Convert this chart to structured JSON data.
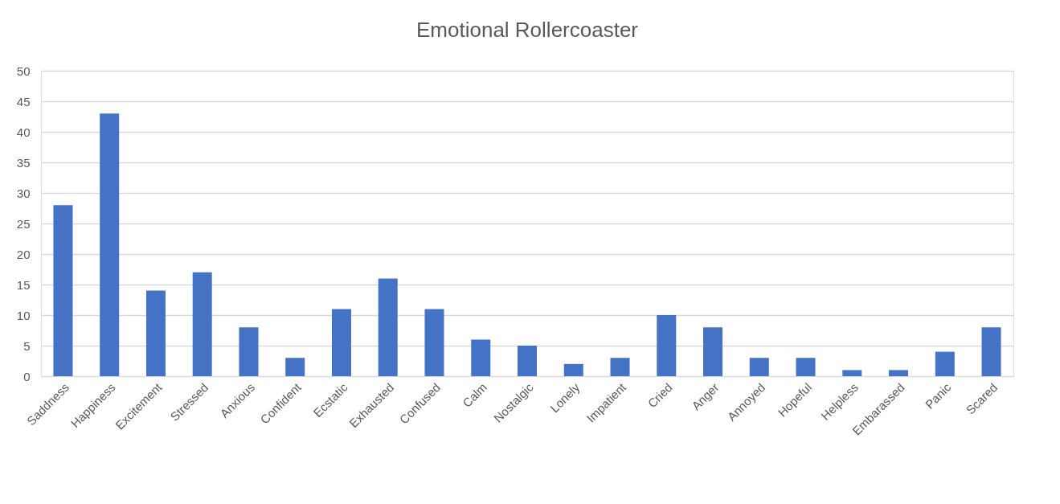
{
  "chart_data": {
    "type": "bar",
    "title": "Emotional Rollercoaster",
    "categories": [
      "Saddness",
      "Happiness",
      "Excitement",
      "Stressed",
      "Anxious",
      "Confident",
      "Ecstatic",
      "Exhausted",
      "Confused",
      "Calm",
      "Nostalgic",
      "Lonely",
      "Impatient",
      "Cried",
      "Anger",
      "Annoyed",
      "Hopeful",
      "Helpless",
      "Embarassed",
      "Panic",
      "Scared"
    ],
    "values": [
      28,
      43,
      14,
      17,
      8,
      3,
      11,
      16,
      11,
      6,
      5,
      2,
      3,
      10,
      8,
      3,
      3,
      1,
      1,
      4,
      8
    ],
    "color": "#4472c4",
    "ylim": [
      0,
      50
    ],
    "yticks": [
      0,
      5,
      10,
      15,
      20,
      25,
      30,
      35,
      40,
      45,
      50
    ],
    "grid": "y"
  }
}
